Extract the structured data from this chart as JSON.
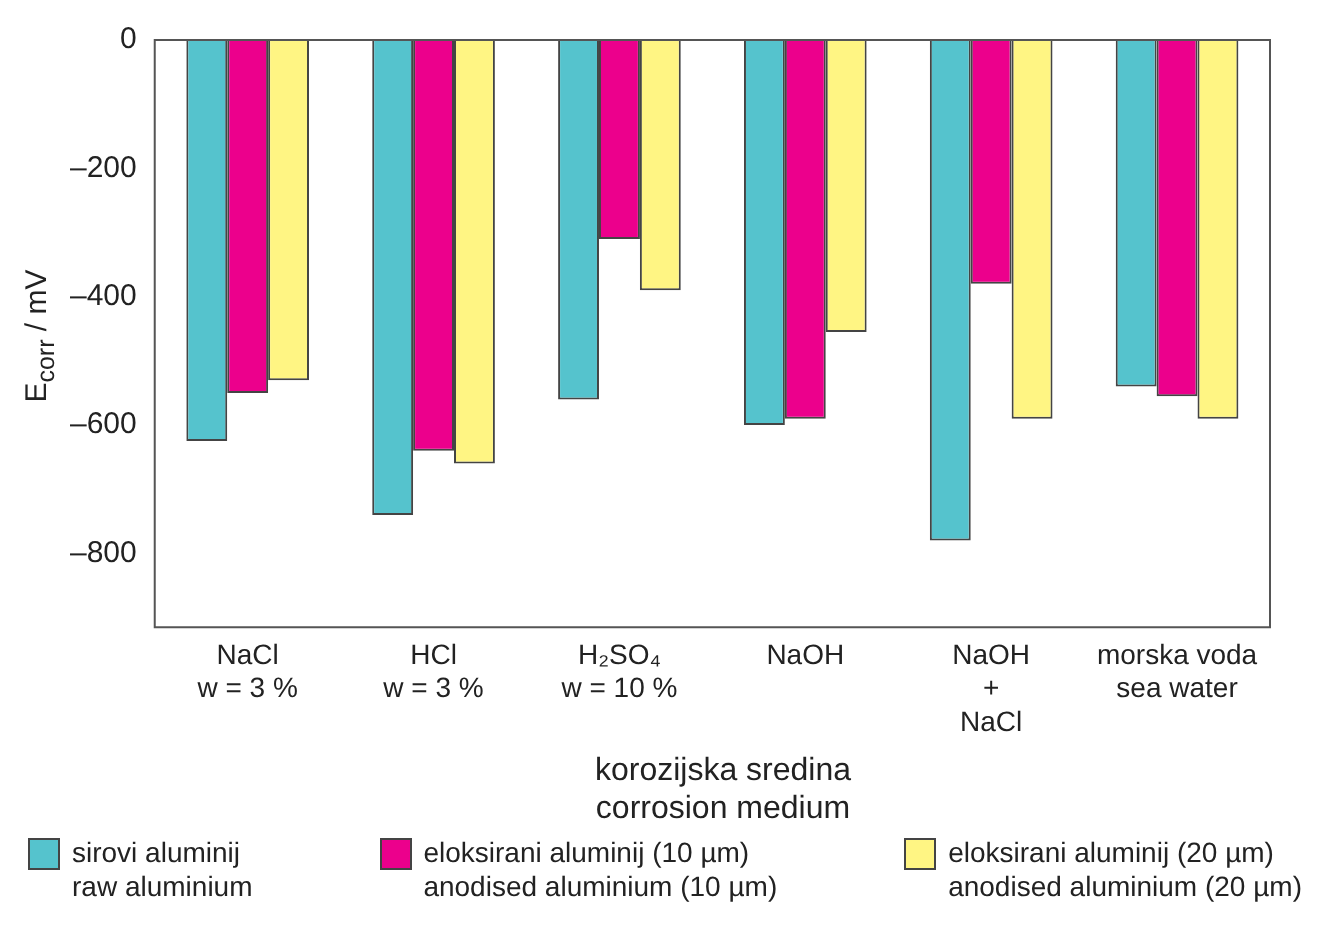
{
  "chart_data": {
    "type": "bar",
    "xlabel": "korozijska sredina\ncorrosion medium",
    "ylabel": "E$_{corr}$ / mV",
    "categories": [
      "NaCl\nw = 3 %",
      "HCl\nw = 3 %",
      "H₂SO₄\nw = 10 %",
      "NaOH",
      "NaOH\n+\nNaCl",
      "morska voda\nsea water"
    ],
    "series": [
      {
        "name": "sirovi aluminij\nraw aluminium",
        "color": "#55c3cd",
        "values": [
          -625,
          -740,
          -560,
          -600,
          -780,
          -540
        ]
      },
      {
        "name": "eloksirani aluminij (10 µm)\nanodised aluminium (10 µm)",
        "color": "#ec008c",
        "values": [
          -550,
          -640,
          -310,
          -590,
          -380,
          -555
        ]
      },
      {
        "name": "eloksirani aluminij (20 µm)\nanodised aluminium (20 µm)",
        "color": "#fff583",
        "values": [
          -530,
          -660,
          -390,
          -455,
          -590,
          -590
        ]
      }
    ],
    "ylim": [
      -915,
      0
    ],
    "yticks": [
      {
        "value": -800,
        "label": "–800"
      },
      {
        "value": -600,
        "label": "–600"
      },
      {
        "value": -400,
        "label": "–400"
      },
      {
        "value": -200,
        "label": "–200"
      },
      0
    ],
    "grid": false,
    "legend": "bottom"
  }
}
